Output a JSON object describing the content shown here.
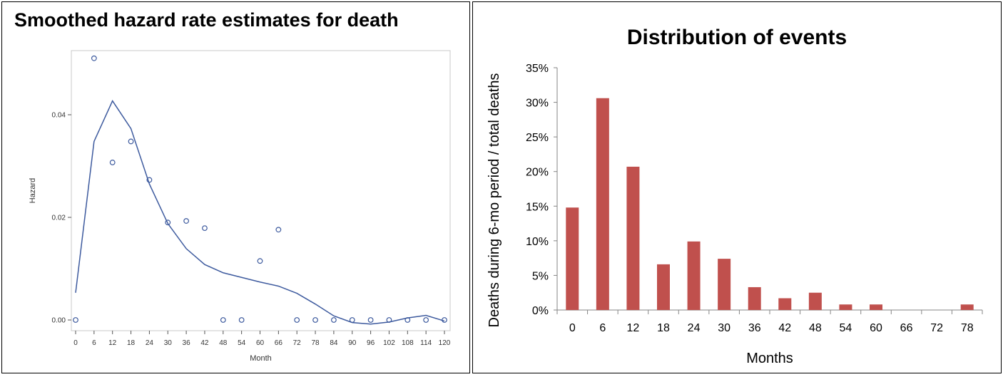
{
  "chart_data": [
    {
      "type": "scatter",
      "title": "Smoothed hazard rate estimates for death",
      "xlabel": "Month",
      "ylabel": "Hazard",
      "xticks": [
        0,
        6,
        12,
        18,
        24,
        30,
        36,
        42,
        48,
        54,
        60,
        66,
        72,
        78,
        84,
        90,
        96,
        102,
        108,
        114,
        120
      ],
      "yticks": [
        "0.00",
        "0.02",
        "0.04"
      ],
      "ylim": [
        -0.001,
        0.0535
      ],
      "xlim": [
        -2,
        122
      ],
      "series": [
        {
          "type": "scatter",
          "marker": "open-circle",
          "points": [
            {
              "x": 0,
              "y": 0.0
            },
            {
              "x": 6,
              "y": 0.051
            },
            {
              "x": 12,
              "y": 0.0307
            },
            {
              "x": 18,
              "y": 0.0348
            },
            {
              "x": 24,
              "y": 0.0273
            },
            {
              "x": 30,
              "y": 0.019
            },
            {
              "x": 36,
              "y": 0.0193
            },
            {
              "x": 42,
              "y": 0.0179
            },
            {
              "x": 48,
              "y": 0.0
            },
            {
              "x": 54,
              "y": 0.0
            },
            {
              "x": 60,
              "y": 0.0115
            },
            {
              "x": 66,
              "y": 0.0176
            },
            {
              "x": 72,
              "y": 0.0
            },
            {
              "x": 78,
              "y": 0.0
            },
            {
              "x": 84,
              "y": 0.0
            },
            {
              "x": 90,
              "y": 0.0
            },
            {
              "x": 96,
              "y": 0.0
            },
            {
              "x": 102,
              "y": 0.0
            },
            {
              "x": 108,
              "y": 0.0
            },
            {
              "x": 114,
              "y": 0.0
            },
            {
              "x": 120,
              "y": 0.0
            }
          ]
        },
        {
          "type": "line",
          "points": [
            {
              "x": 0,
              "y": 0.0053
            },
            {
              "x": 6,
              "y": 0.0348
            },
            {
              "x": 12,
              "y": 0.0427
            },
            {
              "x": 18,
              "y": 0.0373
            },
            {
              "x": 24,
              "y": 0.0265
            },
            {
              "x": 30,
              "y": 0.0188
            },
            {
              "x": 36,
              "y": 0.0139
            },
            {
              "x": 42,
              "y": 0.0108
            },
            {
              "x": 48,
              "y": 0.0092
            },
            {
              "x": 54,
              "y": 0.0083
            },
            {
              "x": 60,
              "y": 0.0074
            },
            {
              "x": 66,
              "y": 0.0066
            },
            {
              "x": 72,
              "y": 0.0052
            },
            {
              "x": 78,
              "y": 0.0031
            },
            {
              "x": 84,
              "y": 0.0008
            },
            {
              "x": 90,
              "y": -0.0005
            },
            {
              "x": 96,
              "y": -0.0008
            },
            {
              "x": 102,
              "y": -0.0004
            },
            {
              "x": 108,
              "y": 0.0004
            },
            {
              "x": 114,
              "y": 0.0009
            },
            {
              "x": 120,
              "y": -0.0002
            }
          ]
        }
      ],
      "colors": {
        "series": "#3d5a9e",
        "frame": "#c8c8c8"
      }
    },
    {
      "type": "bar",
      "title": "Distribution of events",
      "xlabel": "Months",
      "ylabel": "Deaths during 6-mo period / total deaths",
      "categories": [
        "0",
        "6",
        "12",
        "18",
        "24",
        "30",
        "36",
        "42",
        "48",
        "54",
        "60",
        "66",
        "72",
        "78"
      ],
      "values": [
        14.8,
        30.6,
        20.7,
        6.6,
        9.9,
        7.4,
        3.3,
        1.7,
        2.5,
        0.8,
        0.8,
        0,
        0,
        0.8
      ],
      "ylim": [
        0,
        35
      ],
      "yticks": [
        "0%",
        "5%",
        "10%",
        "15%",
        "20%",
        "25%",
        "30%",
        "35%"
      ],
      "colors": {
        "bar": "#c0504d"
      }
    }
  ]
}
